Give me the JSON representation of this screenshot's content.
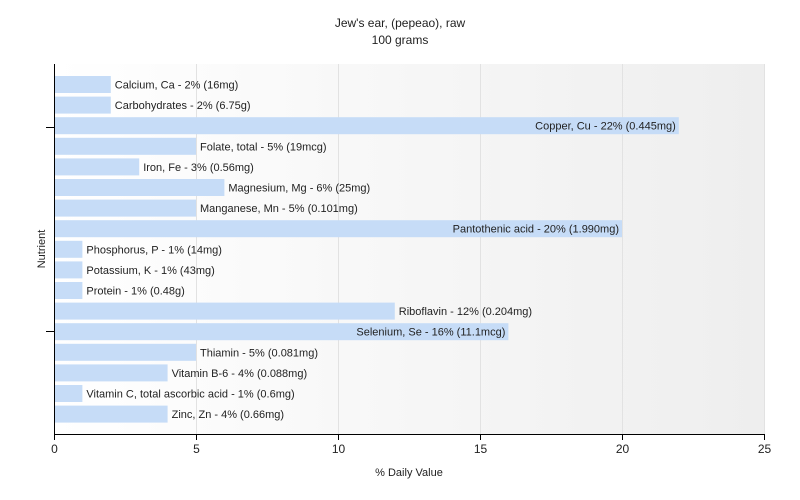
{
  "chart_data": {
    "type": "bar",
    "orientation": "horizontal",
    "title": "Jew's ear, (pepeao), raw",
    "subtitle": "100 grams",
    "xlabel": "% Daily Value",
    "ylabel": "Nutrient",
    "xlim": [
      0,
      25
    ],
    "xticks": [
      0,
      5,
      10,
      15,
      20,
      25
    ],
    "grid": true,
    "bar_color": "#c6dcf7",
    "categories": [
      "Calcium, Ca",
      "Carbohydrates",
      "Copper, Cu",
      "Folate, total",
      "Iron, Fe",
      "Magnesium, Mg",
      "Manganese, Mn",
      "Pantothenic acid",
      "Phosphorus, P",
      "Potassium, K",
      "Protein",
      "Riboflavin",
      "Selenium, Se",
      "Thiamin",
      "Vitamin B-6",
      "Vitamin C, total ascorbic acid",
      "Zinc, Zn"
    ],
    "values": [
      2,
      2,
      22,
      5,
      3,
      6,
      5,
      20,
      1,
      1,
      1,
      12,
      16,
      5,
      4,
      1,
      4
    ],
    "labels": [
      "Calcium, Ca - 2% (16mg)",
      "Carbohydrates - 2% (6.75g)",
      "Copper, Cu - 22% (0.445mg)",
      "Folate, total - 5% (19mcg)",
      "Iron, Fe - 3% (0.56mg)",
      "Magnesium, Mg - 6% (25mg)",
      "Manganese, Mn - 5% (0.101mg)",
      "Pantothenic acid - 20% (1.990mg)",
      "Phosphorus, P - 1% (14mg)",
      "Potassium, K - 1% (43mg)",
      "Protein - 1% (0.48g)",
      "Riboflavin - 12% (0.204mg)",
      "Selenium, Se - 16% (11.1mcg)",
      "Thiamin - 5% (0.081mg)",
      "Vitamin B-6 - 4% (0.088mg)",
      "Vitamin C, total ascorbic acid - 1% (0.6mg)",
      "Zinc, Zn - 4% (0.66mg)"
    ]
  }
}
